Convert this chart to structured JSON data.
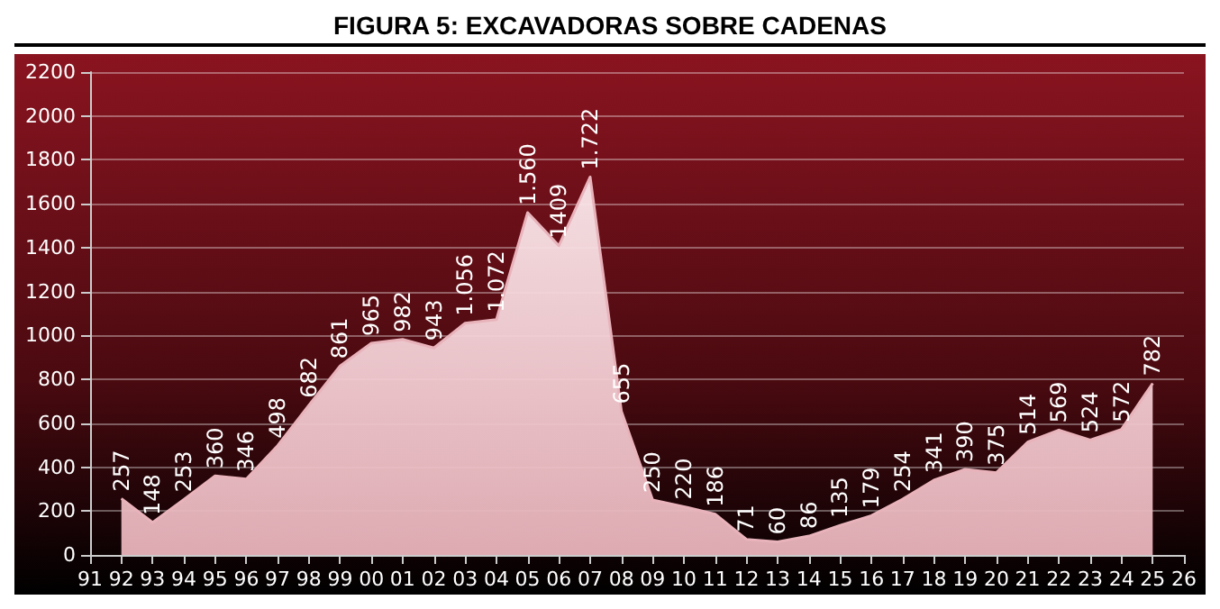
{
  "chart_data": {
    "type": "area",
    "title": "FIGURA 5: EXCAVADORAS SOBRE CADENAS",
    "categories": [
      "91",
      "92",
      "93",
      "94",
      "95",
      "96",
      "97",
      "98",
      "99",
      "00",
      "01",
      "02",
      "03",
      "04",
      "05",
      "06",
      "07",
      "08",
      "09",
      "10",
      "11",
      "12",
      "13",
      "14",
      "15",
      "16",
      "17",
      "18",
      "19",
      "20",
      "21",
      "22",
      "23",
      "24",
      "25",
      "26"
    ],
    "series": [
      {
        "color": "#e9b3bb",
        "values": [
          null,
          257,
          148,
          253,
          360,
          346,
          498,
          682,
          861,
          965,
          982,
          943,
          1056,
          1072,
          1560,
          1409,
          1722,
          655,
          250,
          220,
          186,
          71,
          60,
          86,
          135,
          179,
          254,
          341,
          390,
          375,
          514,
          569,
          524,
          572,
          782,
          null
        ],
        "value_labels": [
          null,
          "257",
          "148",
          "253",
          "360",
          "346",
          "498",
          "682",
          "861",
          "965",
          "982",
          "943",
          "1.056",
          "1.072",
          "1.560",
          "1409",
          "1.722",
          "655",
          "250",
          "220",
          "186",
          "71",
          "60",
          "86",
          "135",
          "179",
          "254",
          "341",
          "390",
          "375",
          "514",
          "569",
          "524",
          "572",
          "782",
          null
        ]
      }
    ],
    "ylim": [
      0,
      2200
    ],
    "yticks": [
      0,
      200,
      400,
      600,
      800,
      1000,
      1200,
      1400,
      1600,
      1800,
      2000,
      2200
    ],
    "grid": "y",
    "marker": "none"
  }
}
